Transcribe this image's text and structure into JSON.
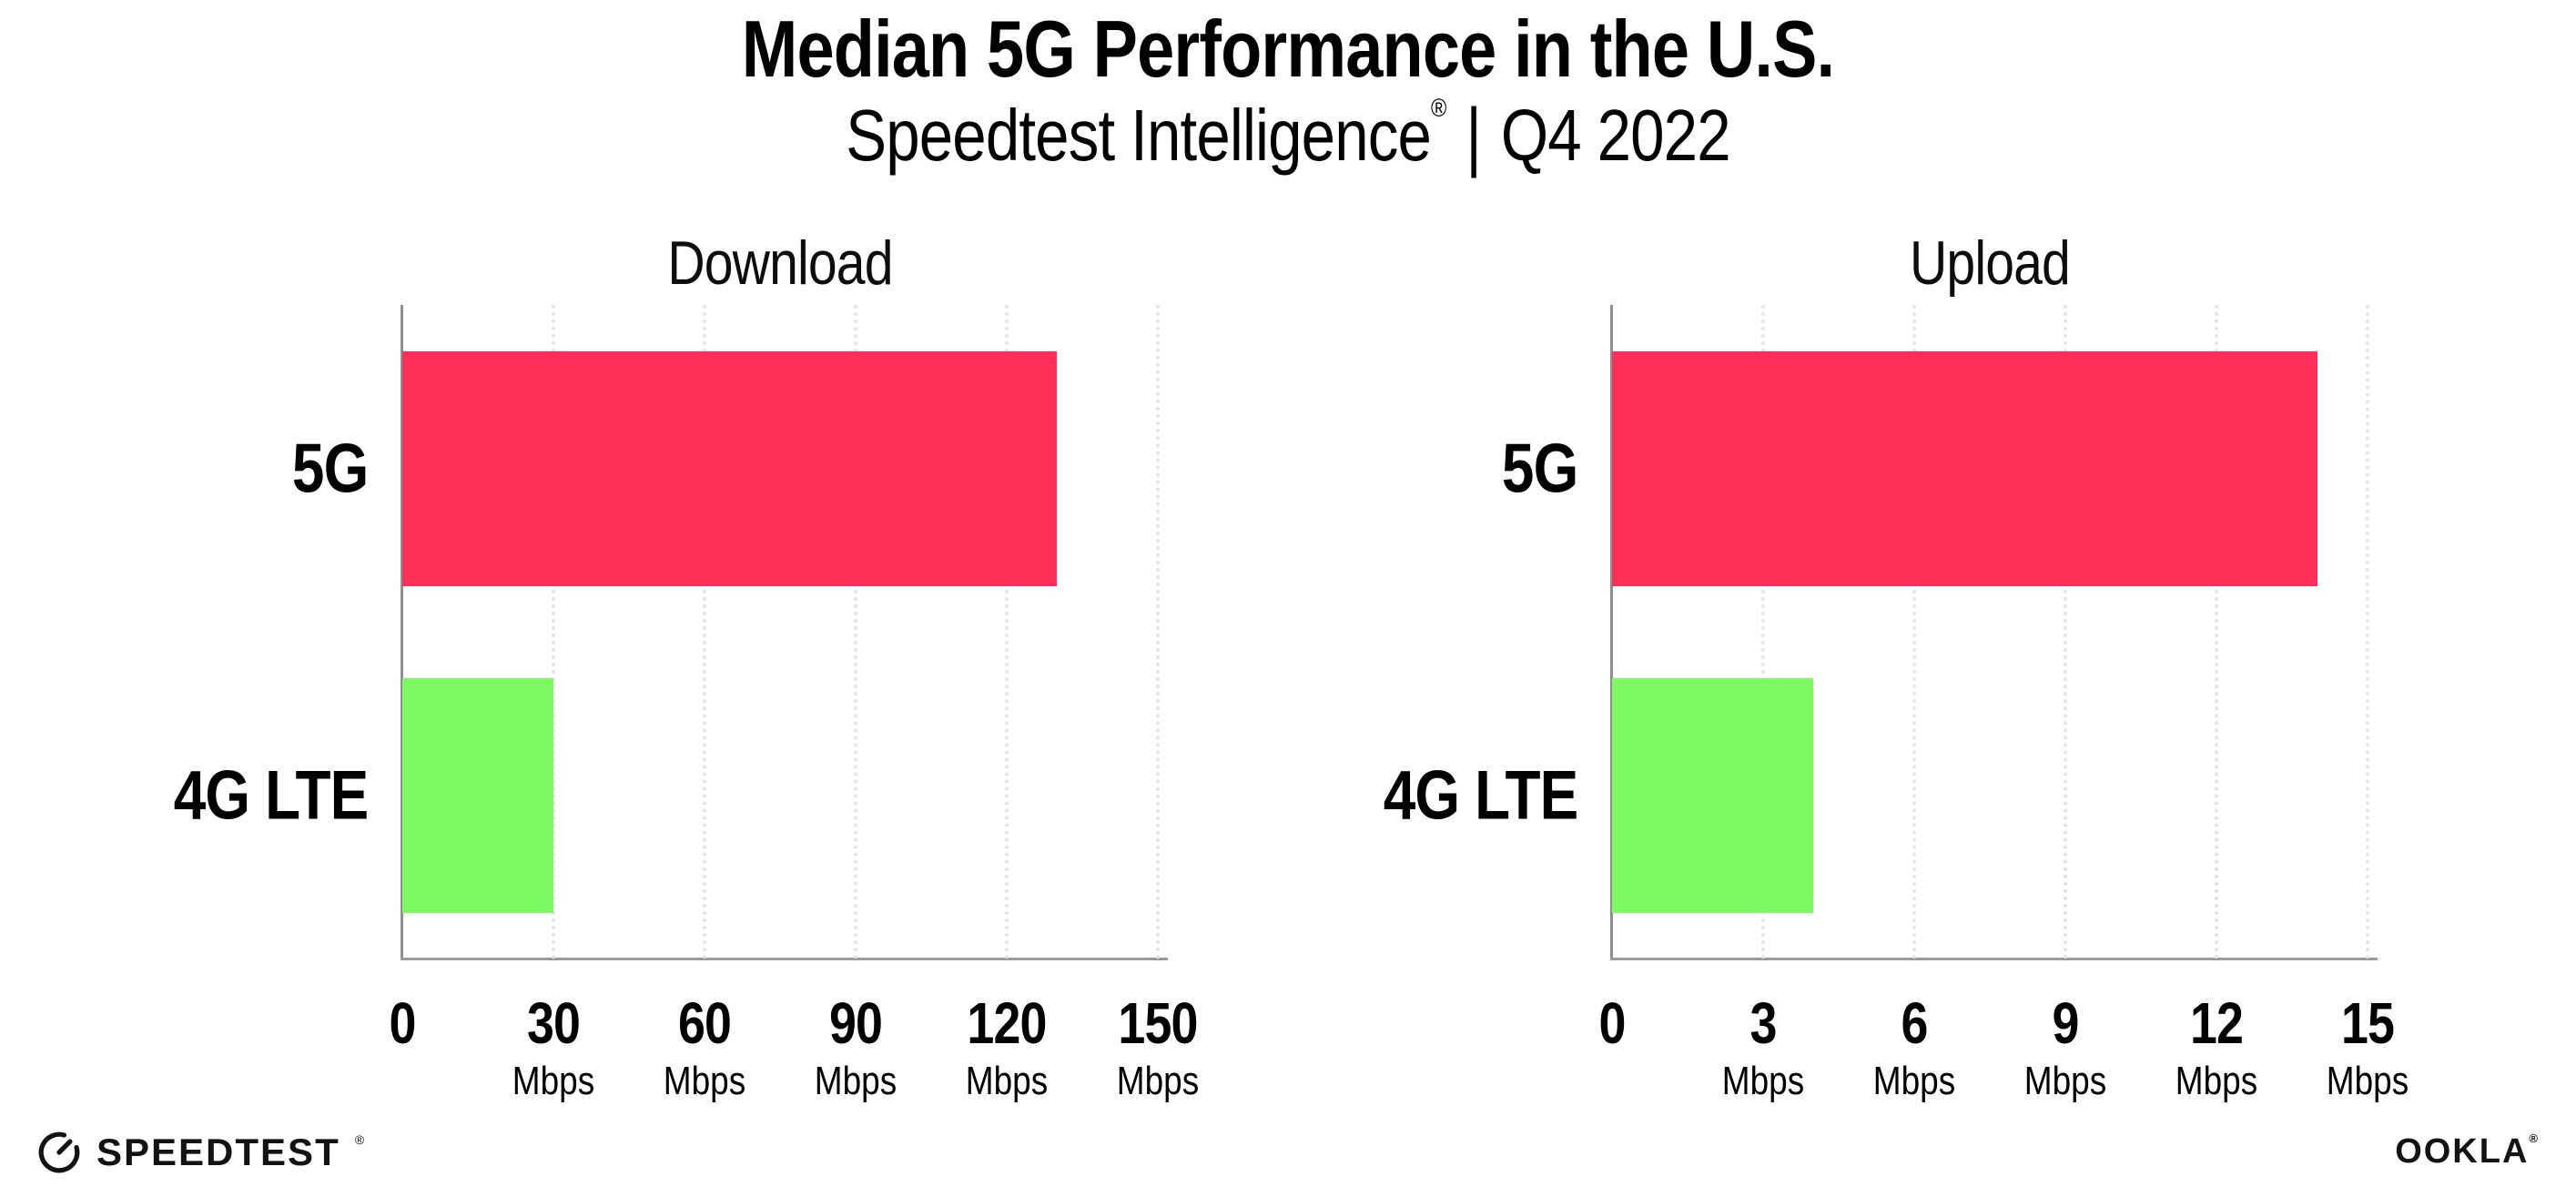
{
  "header": {
    "title": "Median 5G Performance in the U.S.",
    "subtitle_brand": "Speedtest Intelligence",
    "subtitle_reg": "®",
    "subtitle_sep": "|",
    "subtitle_period": "Q4 2022"
  },
  "chart_data": [
    {
      "type": "bar",
      "orientation": "horizontal",
      "title": "Download",
      "categories": [
        "5G",
        "4G LTE"
      ],
      "values": [
        130,
        30
      ],
      "value_unit": "Mbps",
      "xlim": [
        0,
        150
      ],
      "xticks": [
        0,
        30,
        60,
        90,
        120,
        150
      ],
      "tick_unit_label": "Mbps",
      "bar_colors": [
        "#fd2e58",
        "#7dfa63"
      ],
      "grid": "dotted-vertical",
      "legend": "none"
    },
    {
      "type": "bar",
      "orientation": "horizontal",
      "title": "Upload",
      "categories": [
        "5G",
        "4G LTE"
      ],
      "values": [
        14,
        4
      ],
      "value_unit": "Mbps",
      "xlim": [
        0,
        15
      ],
      "xticks": [
        0,
        3,
        6,
        9,
        12,
        15
      ],
      "tick_unit_label": "Mbps",
      "bar_colors": [
        "#fd2e58",
        "#7dfa63"
      ],
      "grid": "dotted-vertical",
      "legend": "none"
    }
  ],
  "footer": {
    "speedtest_label": "SPEEDTEST",
    "speedtest_reg": "®",
    "ookla_label": "OOKLA",
    "ookla_reg": "®"
  },
  "colors": {
    "bar_5g": "#fd2e58",
    "bar_4g_lte": "#7dfa63",
    "axis": "#9a9a9a",
    "gridline": "#e4e3ee",
    "text": "#000000"
  }
}
